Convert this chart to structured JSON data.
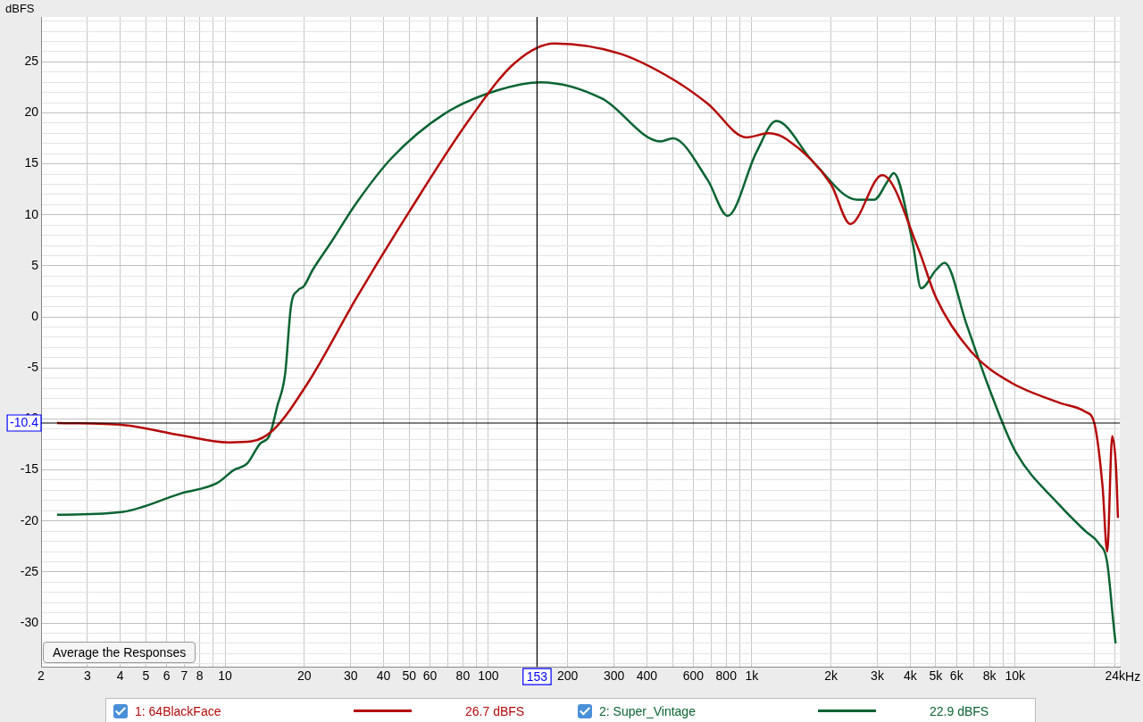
{
  "chart_data": {
    "type": "line",
    "ylabel": "dBFS",
    "log": "x",
    "grid": true,
    "legend": "bottom",
    "marker": "none",
    "line_style": "solid",
    "xlim": [
      2,
      25000
    ],
    "ylim": [
      -34.3,
      29.4
    ],
    "xticks": [
      2,
      3,
      4,
      5,
      6,
      7,
      8,
      {
        "value": 9,
        "label": null
      },
      10,
      20,
      30,
      40,
      50,
      60,
      {
        "value": 70,
        "label": null
      },
      80,
      {
        "value": 90,
        "label": null
      },
      100,
      200,
      300,
      400,
      {
        "value": 500,
        "label": null
      },
      600,
      {
        "value": 700,
        "label": null
      },
      800,
      {
        "value": 900,
        "label": null
      },
      {
        "value": 1000,
        "label": "1k"
      },
      {
        "value": 2000,
        "label": "2k"
      },
      {
        "value": 3000,
        "label": "3k"
      },
      {
        "value": 4000,
        "label": "4k"
      },
      {
        "value": 5000,
        "label": "5k"
      },
      {
        "value": 6000,
        "label": "6k"
      },
      {
        "value": 7000,
        "label": null
      },
      {
        "value": 8000,
        "label": "8k"
      },
      {
        "value": 9000,
        "label": null
      },
      {
        "value": 10000,
        "label": "10k"
      },
      {
        "value": 20000,
        "label": null
      },
      {
        "value": 24000,
        "label": "24k"
      }
    ],
    "xlabel": "Hz",
    "yticks": [
      {
        "value": -34,
        "label": null
      },
      {
        "value": -33,
        "label": null
      },
      {
        "value": -32,
        "label": null
      },
      {
        "value": -31,
        "label": null
      },
      -30,
      {
        "value": -29,
        "label": null
      },
      {
        "value": -28,
        "label": null
      },
      {
        "value": -27,
        "label": null
      },
      {
        "value": -26,
        "label": null
      },
      -25,
      {
        "value": -24,
        "label": null
      },
      {
        "value": -23,
        "label": null
      },
      {
        "value": -22,
        "label": null
      },
      {
        "value": -21,
        "label": null
      },
      -20,
      {
        "value": -19,
        "label": null
      },
      {
        "value": -18,
        "label": null
      },
      {
        "value": -17,
        "label": null
      },
      {
        "value": -16,
        "label": null
      },
      -15,
      {
        "value": -14,
        "label": null
      },
      {
        "value": -13,
        "label": null
      },
      {
        "value": -12,
        "label": null
      },
      {
        "value": -11,
        "label": null
      },
      -10,
      {
        "value": -9,
        "label": null
      },
      {
        "value": -8,
        "label": null
      },
      {
        "value": -7,
        "label": null
      },
      {
        "value": -6,
        "label": null
      },
      -5,
      {
        "value": -4,
        "label": null
      },
      {
        "value": -3,
        "label": null
      },
      {
        "value": -2,
        "label": null
      },
      {
        "value": -1,
        "label": null
      },
      0,
      {
        "value": 1,
        "label": null
      },
      {
        "value": 2,
        "label": null
      },
      {
        "value": 3,
        "label": null
      },
      {
        "value": 4,
        "label": null
      },
      5,
      {
        "value": 6,
        "label": null
      },
      {
        "value": 7,
        "label": null
      },
      {
        "value": 8,
        "label": null
      },
      {
        "value": 9,
        "label": null
      },
      10,
      {
        "value": 11,
        "label": null
      },
      {
        "value": 12,
        "label": null
      },
      {
        "value": 13,
        "label": null
      },
      {
        "value": 14,
        "label": null
      },
      15,
      {
        "value": 16,
        "label": null
      },
      {
        "value": 17,
        "label": null
      },
      {
        "value": 18,
        "label": null
      },
      {
        "value": 19,
        "label": null
      },
      20,
      {
        "value": 21,
        "label": null
      },
      {
        "value": 22,
        "label": null
      },
      {
        "value": 23,
        "label": null
      },
      {
        "value": 24,
        "label": null
      },
      25,
      {
        "value": 26,
        "label": null
      },
      {
        "value": 27,
        "label": null
      },
      {
        "value": 28,
        "label": null
      },
      {
        "value": 29,
        "label": null
      }
    ],
    "ref_lines": [
      {
        "axis": "x",
        "value": 153,
        "label": "153",
        "color": "#000000"
      },
      {
        "axis": "y",
        "value": -10.4,
        "label": "-10.4",
        "color": "#000000"
      }
    ],
    "annotations": [
      "26.7 dBFS",
      "22.9 dBFS",
      "Average the Responses"
    ],
    "series": [
      {
        "name": "1: 64BlackFace",
        "color": "#b40a0a",
        "x": [
          2.3,
          4.1,
          6.8,
          10.4,
          12.6,
          15.2,
          20.7,
          31.6,
          50,
          86,
          126,
          178,
          316,
          501,
          681,
          955,
          1160,
          1360,
          2000,
          2370,
          3130,
          4290,
          5010,
          6810,
          9600,
          14700,
          18500,
          20000,
          21500,
          22400,
          23400,
          24200,
          24600
        ],
        "values": [
          -10.4,
          -10.6,
          -11.6,
          -12.3,
          -12.2,
          -11.1,
          -6.4,
          1.9,
          10.3,
          19.6,
          24.9,
          26.8,
          25.8,
          23.3,
          20.9,
          17.6,
          18.0,
          17.4,
          13.0,
          9.1,
          13.9,
          6.7,
          1.9,
          -3.4,
          -6.4,
          -8.4,
          -9.3,
          -10.4,
          -16.6,
          -23.0,
          -11.7,
          -14.8,
          -19.7
        ]
      },
      {
        "name": "2: Super_Vintage",
        "color": "#0a6432",
        "x": [
          2.3,
          4.1,
          6.8,
          9.3,
          10.8,
          12.1,
          13.6,
          14.7,
          15.8,
          16.9,
          17.8,
          18.9,
          19.9,
          21.5,
          25.1,
          31.6,
          43,
          68,
          108,
          158,
          270,
          451,
          501,
          681,
          810,
          1040,
          1240,
          1710,
          2510,
          2920,
          3300,
          3460,
          4090,
          4400,
          5010,
          5400,
          6540,
          7950,
          10000,
          14700,
          18500,
          20800,
          22400,
          23600,
          24100
        ],
        "values": [
          -19.4,
          -19.1,
          -17.3,
          -16.3,
          -15.0,
          -14.4,
          -12.4,
          -11.7,
          -8.7,
          -5.6,
          1.1,
          2.6,
          3.0,
          4.6,
          7.2,
          11.2,
          15.6,
          19.9,
          22.2,
          23.0,
          21.4,
          17.2,
          17.5,
          13.4,
          9.9,
          16.1,
          19.2,
          15.2,
          11.5,
          11.5,
          13.4,
          14.1,
          7.2,
          2.8,
          4.6,
          5.3,
          -0.7,
          -6.9,
          -13.1,
          -18.4,
          -21.0,
          -22.2,
          -24.1,
          -29.8,
          -32.0
        ]
      }
    ]
  }
}
